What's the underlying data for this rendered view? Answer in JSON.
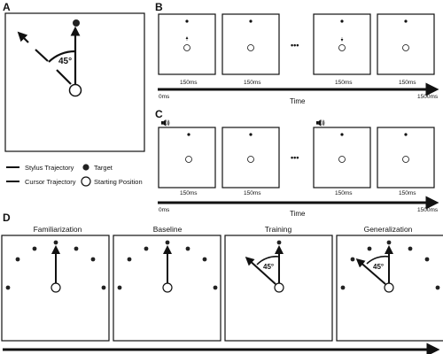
{
  "panels": {
    "A": {
      "label": "A",
      "angle_text": "45°",
      "legend": {
        "stylus": "Stylus Trajectory",
        "cursor": "Cursor Trajectory",
        "target": "Target",
        "start": "Starting Position"
      }
    },
    "B": {
      "label": "B",
      "duration_labels": [
        "150ms",
        "150ms",
        "150ms",
        "150ms"
      ],
      "ellipsis": "•••",
      "axis_start": "0ms",
      "axis_end": "1500ms",
      "axis_title": "Time"
    },
    "C": {
      "label": "C",
      "duration_labels": [
        "150ms",
        "150ms",
        "150ms",
        "150ms"
      ],
      "ellipsis": "•••",
      "axis_start": "0ms",
      "axis_end": "1500ms",
      "axis_title": "Time"
    },
    "D": {
      "label": "D",
      "phases": [
        "Familiarization",
        "Baseline",
        "Training",
        "Generalization"
      ],
      "angle_text": "45°"
    }
  },
  "colors": {
    "ink": "#111111",
    "background": "#ffffff"
  }
}
